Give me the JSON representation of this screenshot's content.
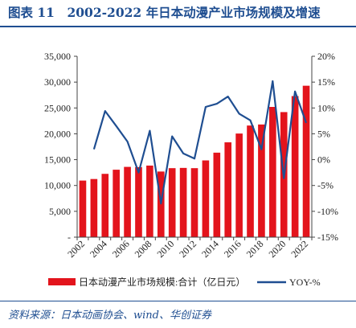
{
  "title": "图表 11　2002-2022 年日本动漫产业市场规模及增速",
  "source": "资料来源：日本动画协会、wind、华创证券",
  "colors": {
    "bar": "#e3141c",
    "line": "#1f4e91",
    "title": "#1f4e91"
  },
  "chart_data": {
    "type": "bar",
    "categories": [
      "2002",
      "2003",
      "2004",
      "2005",
      "2006",
      "2007",
      "2008",
      "2009",
      "2010",
      "2011",
      "2012",
      "2013",
      "2014",
      "2015",
      "2016",
      "2017",
      "2018",
      "2019",
      "2020",
      "2021",
      "2022"
    ],
    "x_tick_labels": [
      "2002",
      "2004",
      "2006",
      "2008",
      "2010",
      "2012",
      "2014",
      "2016",
      "2018",
      "2020",
      "2022"
    ],
    "series": [
      {
        "name": "日本动漫产业市场规模:合计（亿日元）",
        "type": "bar",
        "axis": "left",
        "values": [
          10950,
          11250,
          12250,
          13050,
          13600,
          13550,
          13850,
          12700,
          13350,
          13400,
          13350,
          14850,
          16350,
          18350,
          20050,
          21600,
          21800,
          25200,
          24200,
          27300,
          29300
        ]
      },
      {
        "name": "YOY-%",
        "type": "line",
        "axis": "right",
        "values": [
          null,
          2.0,
          9.4,
          6.5,
          3.5,
          -2.5,
          5.6,
          -8.5,
          4.5,
          1.2,
          0.2,
          10.2,
          10.8,
          12.2,
          8.9,
          7.6,
          2.0,
          15.2,
          -3.6,
          13.2,
          7.1
        ]
      }
    ],
    "y_left": {
      "ylim": [
        0,
        35000
      ],
      "ticks": [
        "-",
        "5,000",
        "10,000",
        "15,000",
        "20,000",
        "25,000",
        "30,000",
        "35,000"
      ]
    },
    "y_right": {
      "ylim": [
        -15,
        20
      ],
      "ticks": [
        "-15%",
        "-10%",
        "-5%",
        "0%",
        "5%",
        "10%",
        "15%",
        "20%"
      ]
    },
    "legend": {
      "placement": "bottom",
      "bar_label": "日本动漫产业市场规模:合计（亿日元）",
      "line_label": "YOY-%"
    },
    "grid": false
  }
}
